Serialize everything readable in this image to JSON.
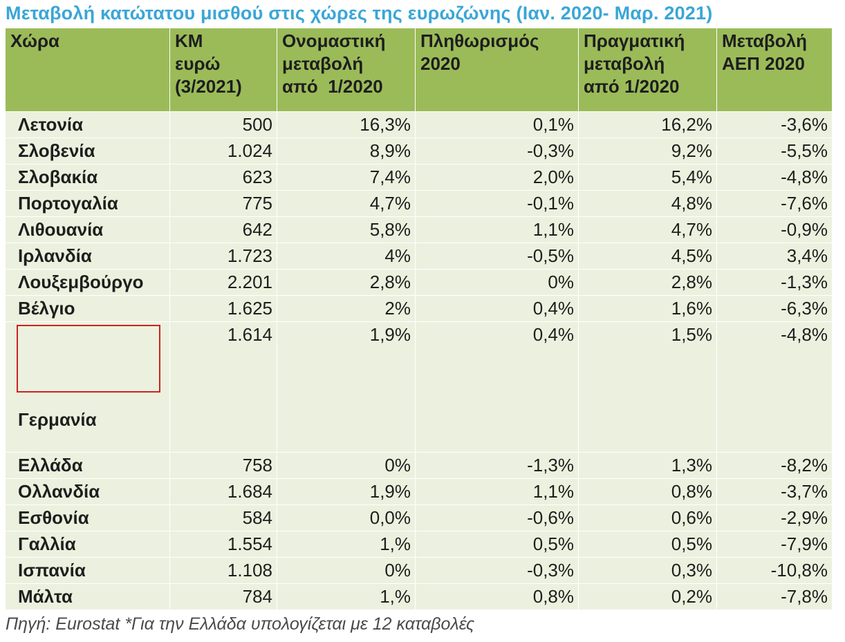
{
  "title": "Μεταβολή κατώτατου μισθού στις χώρες της ευρωζώνης (Ιαν. 2020- Μαρ. 2021)",
  "headers": [
    [
      "Χώρα"
    ],
    [
      "ΚΜ",
      "ευρώ",
      "(3/2021)"
    ],
    [
      "Ονομαστική",
      "μεταβολή",
      "από  1/2020"
    ],
    [
      "Πληθωρισμός",
      "2020"
    ],
    [
      "Πραγματική",
      "μεταβολή",
      "από 1/2020"
    ],
    [
      "Μεταβολή",
      "ΑΕΠ 2020"
    ]
  ],
  "rows": [
    [
      "Λετονία",
      "500",
      "16,3%",
      "0,1%",
      "16,2%",
      "-3,6%"
    ],
    [
      "Σλοβενία",
      "1.024",
      "8,9%",
      "-0,3%",
      "9,2%",
      "-5,5%"
    ],
    [
      "Σλοβακία",
      "623",
      "7,4%",
      "2,0%",
      "5,4%",
      "-4,8%"
    ],
    [
      "Πορτογαλία",
      "775",
      "4,7%",
      "-0,1%",
      "4,8%",
      "-7,6%"
    ],
    [
      "Λιθουανία",
      "642",
      "5,8%",
      "1,1%",
      "4,7%",
      "-0,9%"
    ],
    [
      "Ιρλανδία",
      "1.723",
      "4%",
      "-0,5%",
      "4,5%",
      "3,4%"
    ],
    [
      "Λουξεμβούργο",
      "2.201",
      "2,8%",
      "0%",
      "2,8%",
      "-1,3%"
    ],
    [
      "Βέλγιο",
      "1.625",
      "2%",
      "0,4%",
      "1,6%",
      "-6,3%"
    ],
    [
      "Γερμανία",
      "1.614",
      "1,9%",
      "0,4%",
      "1,5%",
      "-4,8%"
    ],
    [
      "Ελλάδα",
      "758",
      "0%",
      "-1,3%",
      "1,3%",
      "-8,2%"
    ],
    [
      "Ολλανδία",
      "1.684",
      "1,9%",
      "1,1%",
      "0,8%",
      "-3,7%"
    ],
    [
      "Εσθονία",
      "584",
      "0,0%",
      "-0,6%",
      "0,6%",
      "-2,9%"
    ],
    [
      "Γαλλία",
      "1.554",
      "1,%",
      "0,5%",
      "0,5%",
      "-7,9%"
    ],
    [
      "Ισπανία",
      "1.108",
      "0%",
      "-0,3%",
      "0,3%",
      "-10,8%"
    ],
    [
      "Μάλτα",
      "784",
      "1,%",
      "0,8%",
      "0,2%",
      "-7,8%"
    ]
  ],
  "source": "Πηγή: Eurostat *Για την Ελλάδα υπολογίζεται με 12 καταβολές",
  "colors": {
    "title": "#3aa6d6",
    "header_bg": "#9bbb59",
    "row_bg": "#ebf1de",
    "highlight_box": "#cc2222"
  }
}
